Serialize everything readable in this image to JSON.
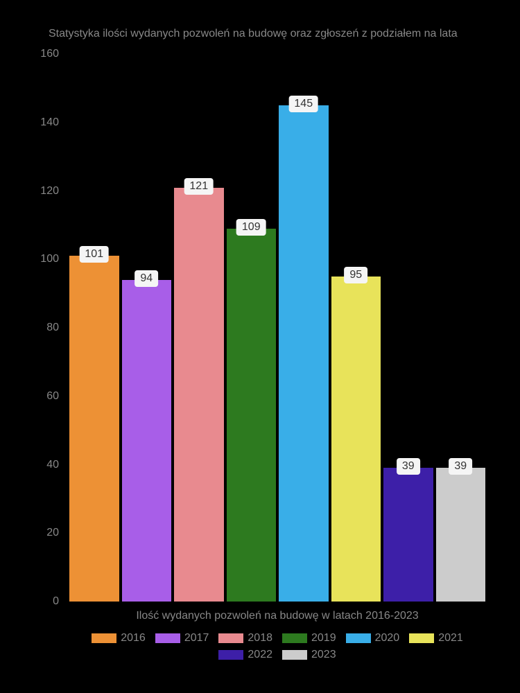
{
  "chart": {
    "type": "bar",
    "title": "Statystyka ilości wydanych pozwoleń na budowę oraz zgłoszeń z podziałem na lata",
    "xlabel": "Ilość wydanych pozwoleń na budowę w latach 2016-2023",
    "background_color": "#000000",
    "text_color": "#888888",
    "label_bg": "#f5f5f5",
    "label_fg": "#333333",
    "title_fontsize": 16,
    "label_fontsize": 16,
    "ylim": [
      0,
      160
    ],
    "ytick_step": 20,
    "yticks": [
      {
        "value": 0,
        "label": "0"
      },
      {
        "value": 20,
        "label": "20"
      },
      {
        "value": 40,
        "label": "40"
      },
      {
        "value": 60,
        "label": "60"
      },
      {
        "value": 80,
        "label": "80"
      },
      {
        "value": 100,
        "label": "100"
      },
      {
        "value": 120,
        "label": "120"
      },
      {
        "value": 140,
        "label": "140"
      },
      {
        "value": 160,
        "label": "160"
      }
    ],
    "series": [
      {
        "year": "2016",
        "value": 101,
        "color": "#ed9135"
      },
      {
        "year": "2017",
        "value": 94,
        "color": "#a85ee8"
      },
      {
        "year": "2018",
        "value": 121,
        "color": "#e88a8f"
      },
      {
        "year": "2019",
        "value": 109,
        "color": "#2d7a1f"
      },
      {
        "year": "2020",
        "value": 145,
        "color": "#39aee8"
      },
      {
        "year": "2021",
        "value": 95,
        "color": "#e8e35a"
      },
      {
        "year": "2022",
        "value": 39,
        "color": "#3d1fa8"
      },
      {
        "year": "2023",
        "value": 39,
        "color": "#cccccc"
      }
    ]
  }
}
